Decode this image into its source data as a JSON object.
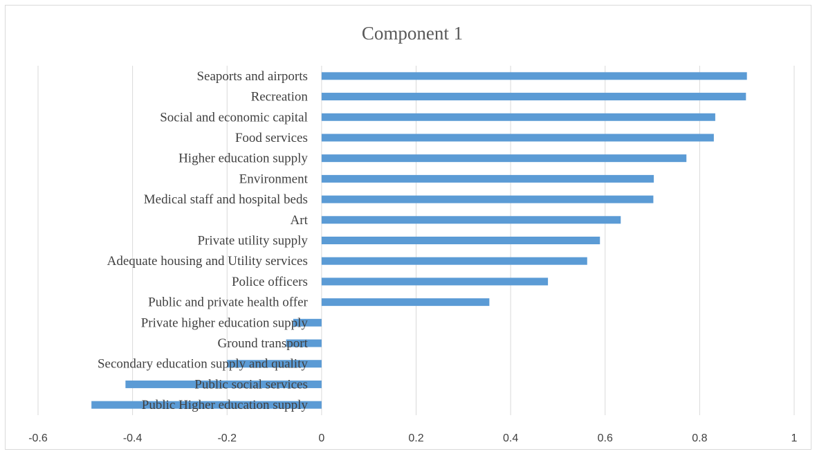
{
  "chart_data": {
    "type": "bar",
    "orientation": "horizontal",
    "title": "Component 1",
    "xlabel": "",
    "ylabel": "",
    "xlim": [
      -0.6,
      1
    ],
    "xticks": [
      -0.6,
      -0.4,
      -0.2,
      0,
      0.2,
      0.4,
      0.6,
      0.8,
      1
    ],
    "xtick_labels": [
      "-0.6",
      "-0.4",
      "-0.2",
      "0",
      "0.2",
      "0.4",
      "0.6",
      "0.8",
      "1"
    ],
    "grid": true,
    "legend": "none",
    "bar_color": "#5b9bd5",
    "categories": [
      "Seaports and airports",
      "Recreation",
      "Social and economic capital",
      "Food services",
      "Higher education supply",
      "Environment",
      "Medical staff and hospital beds",
      "Art",
      "Private utility supply",
      "Adequate housing and Utility services",
      "Police officers",
      "Public and private health offer",
      "Private higher education supply",
      "Ground transport",
      "Secondary education supply and quality",
      "Public social services",
      "Public Higher education supply"
    ],
    "values": [
      0.9,
      0.898,
      0.833,
      0.83,
      0.772,
      0.703,
      0.702,
      0.633,
      0.589,
      0.562,
      0.479,
      0.355,
      -0.06,
      -0.075,
      -0.2,
      -0.415,
      -0.487
    ]
  }
}
